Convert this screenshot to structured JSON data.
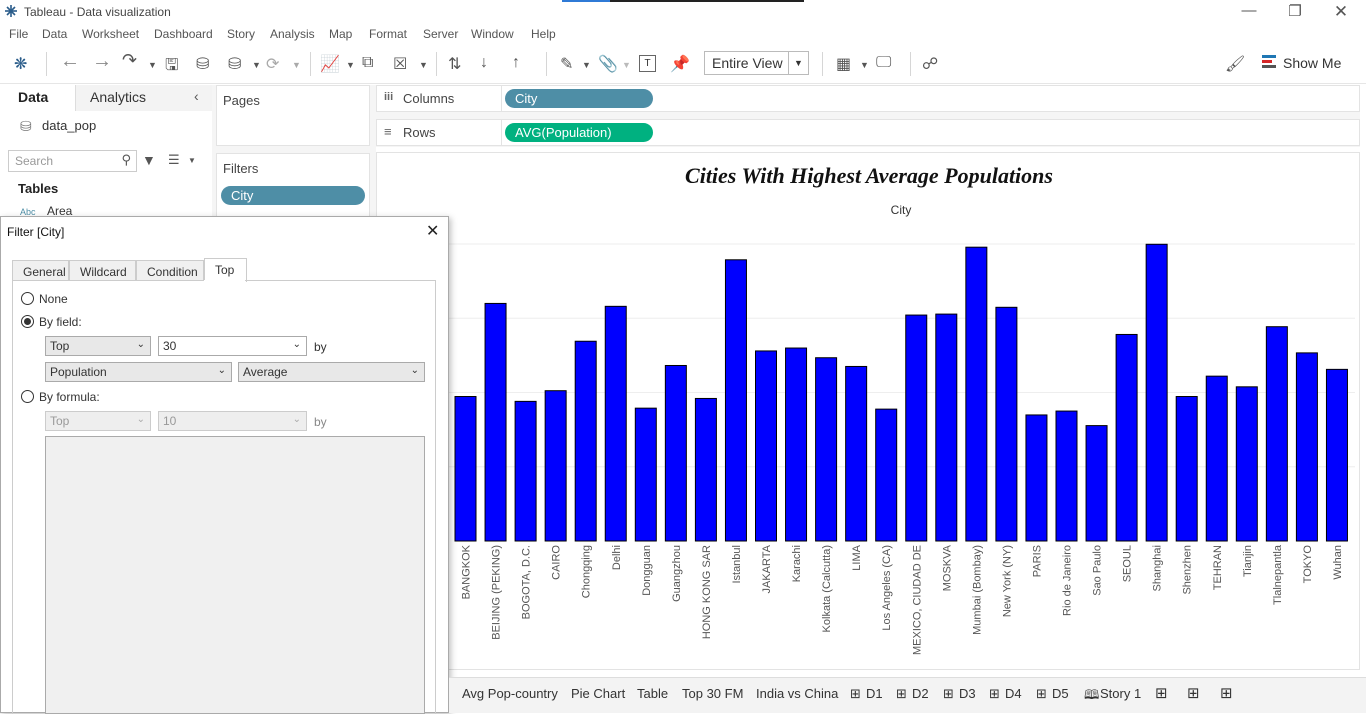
{
  "window": {
    "title": "Tableau - Data visualization"
  },
  "menu": [
    "File",
    "Data",
    "Worksheet",
    "Dashboard",
    "Story",
    "Analysis",
    "Map",
    "Format",
    "Server",
    "Window",
    "Help"
  ],
  "toolbar": {
    "view_selector": "Entire View",
    "show_me": "Show Me"
  },
  "left_pane": {
    "tab_data": "Data",
    "tab_analytics": "Analytics",
    "datasource": "data_pop",
    "search_placeholder": "Search",
    "tables_header": "Tables",
    "field_type": "Abc",
    "field_area": "Area"
  },
  "shelves": {
    "pages_label": "Pages",
    "filters_label": "Filters",
    "filter_pill": "City",
    "columns_label": "Columns",
    "columns_pill": "City",
    "rows_label": "Rows",
    "rows_pill": "AVG(Population)"
  },
  "colors": {
    "pill_dimension": "#4e8ea6",
    "pill_measure": "#00b180",
    "bar": "#0000ff"
  },
  "dialog": {
    "title": "Filter [City]",
    "tabs": [
      "General",
      "Wildcard",
      "Condition",
      "Top"
    ],
    "active_tab": "Top",
    "opt_none": "None",
    "opt_by_field": "By field:",
    "opt_by_formula": "By formula:",
    "field_topbottom": "Top",
    "field_count": "30",
    "by_text": "by",
    "field_name": "Population",
    "field_agg": "Average",
    "formula_topbottom": "Top",
    "formula_count": "10"
  },
  "chart_data": {
    "type": "bar",
    "title": "Cities With Highest Average Populations",
    "header": "City",
    "categories": [
      "BANGKOK",
      "BEIJING (PEKING)",
      "BOGOTA, D.C.",
      "CAIRO",
      "Chongqing",
      "Delhi",
      "Dongguan",
      "Guangzhou",
      "HONG KONG SAR",
      "Istanbul",
      "JAKARTA",
      "Karachi",
      "Kolkata (Calcutta)",
      "LIMA",
      "Los Angeles (CA)",
      "MEXICO, CIUDAD DE",
      "MOSKVA",
      "Mumbai (Bombay)",
      "New York (NY)",
      "PARIS",
      "Rio de Janeiro",
      "Sao Paulo",
      "SEOUL",
      "Shanghai",
      "Shenzhen",
      "TEHRAN",
      "Tianjin",
      "Tlalnepantla",
      "TOKYO",
      "Wuhan"
    ],
    "values": [
      149,
      245,
      144,
      155,
      206,
      242,
      137,
      181,
      147,
      290,
      196,
      199,
      189,
      180,
      136,
      233,
      234,
      303,
      241,
      130,
      134,
      119,
      213,
      306,
      149,
      170,
      159,
      221,
      194,
      177
    ],
    "ylim": [
      0,
      330
    ]
  },
  "sheet_tabs": [
    "Avg Pop-country",
    "Pie Chart",
    "Table",
    "Top 30 FM",
    "India vs China",
    "D1",
    "D2",
    "D3",
    "D4",
    "D5",
    "Story 1"
  ]
}
